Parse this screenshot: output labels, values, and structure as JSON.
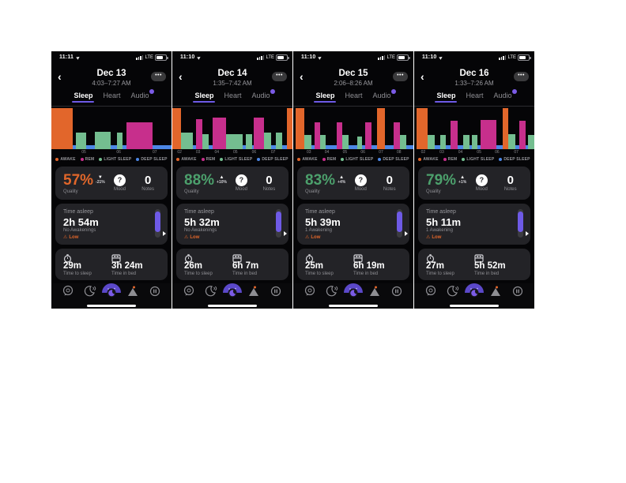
{
  "tabs": {
    "sleep": "Sleep",
    "heart": "Heart",
    "audio": "Audio"
  },
  "labels": {
    "network": "LTE",
    "quality": "Quality",
    "mood": "Mood",
    "notes": "Notes",
    "mood_value": "?",
    "time_asleep": "Time asleep",
    "time_to_sleep": "Time to sleep",
    "time_in_bed": "Time in bed",
    "menu_dots": "•••",
    "back": "‹",
    "warning": "⚠"
  },
  "legend": [
    {
      "label": "AWAKE",
      "color": "#e2662b"
    },
    {
      "label": "REM",
      "color": "#c72f8c"
    },
    {
      "label": "LIGHT SLEEP",
      "color": "#74be90"
    },
    {
      "label": "DEEP SLEEP",
      "color": "#4c87e6"
    }
  ],
  "nav_icons": [
    "chat-icon",
    "sleep-sounds-icon",
    "pillow-logo-icon",
    "trends-icon",
    "profile-icon"
  ],
  "phones": [
    {
      "status_time": "11:11",
      "date": "Dec 13",
      "time_range": "4:03–7:27 AM",
      "quality": {
        "value": "57%",
        "arrow": "▼",
        "delta": "-21%",
        "color": "#e0662a"
      },
      "mood": "?",
      "notes": "0",
      "time_asleep": {
        "duration": "2h 54m",
        "awakenings": "No Awakenings",
        "level": "Low"
      },
      "time_to_sleep": "29m",
      "time_in_bed": "3h 24m",
      "chart": {
        "ticks": [
          {
            "label": "05",
            "x": 0.27
          },
          {
            "label": "06",
            "x": 0.56
          },
          {
            "label": "07",
            "x": 0.86
          }
        ],
        "bars": [
          {
            "t": "awake",
            "x": 0.0,
            "w": 0.175,
            "h": 1.0
          },
          {
            "t": "light",
            "x": 0.205,
            "w": 0.085,
            "h": 0.4
          },
          {
            "t": "light",
            "x": 0.365,
            "w": 0.13,
            "h": 0.42
          },
          {
            "t": "light",
            "x": 0.545,
            "w": 0.05,
            "h": 0.4
          },
          {
            "t": "rem",
            "x": 0.625,
            "w": 0.215,
            "h": 0.65
          },
          {
            "t": "deep",
            "x": 0.175,
            "w": 0.825,
            "h": 0.09
          }
        ]
      }
    },
    {
      "status_time": "11:10",
      "date": "Dec 14",
      "time_range": "1:35–7:42 AM",
      "quality": {
        "value": "88%",
        "arrow": "▲",
        "delta": "+10%",
        "color": "#4ca06c"
      },
      "mood": "?",
      "notes": "0",
      "time_asleep": {
        "duration": "5h 32m",
        "awakenings": "No Awakenings",
        "level": "Low"
      },
      "time_to_sleep": "26m",
      "time_in_bed": "6h 7m",
      "chart": {
        "ticks": [
          {
            "label": "02",
            "x": 0.06
          },
          {
            "label": "03",
            "x": 0.215
          },
          {
            "label": "04",
            "x": 0.37
          },
          {
            "label": "05",
            "x": 0.525
          },
          {
            "label": "06",
            "x": 0.68
          },
          {
            "label": "07",
            "x": 0.84
          }
        ],
        "bars": [
          {
            "t": "awake",
            "x": 0.0,
            "w": 0.075,
            "h": 1.0
          },
          {
            "t": "light",
            "x": 0.075,
            "w": 0.095,
            "h": 0.4
          },
          {
            "t": "rem",
            "x": 0.195,
            "w": 0.055,
            "h": 0.74
          },
          {
            "t": "light",
            "x": 0.25,
            "w": 0.05,
            "h": 0.36
          },
          {
            "t": "rem",
            "x": 0.335,
            "w": 0.115,
            "h": 0.76
          },
          {
            "t": "light",
            "x": 0.45,
            "w": 0.135,
            "h": 0.36
          },
          {
            "t": "light",
            "x": 0.615,
            "w": 0.05,
            "h": 0.36
          },
          {
            "t": "rem",
            "x": 0.675,
            "w": 0.09,
            "h": 0.76
          },
          {
            "t": "light",
            "x": 0.765,
            "w": 0.06,
            "h": 0.4
          },
          {
            "t": "light",
            "x": 0.865,
            "w": 0.05,
            "h": 0.4
          },
          {
            "t": "awake",
            "x": 0.955,
            "w": 0.045,
            "h": 1.0
          },
          {
            "t": "deep",
            "x": 0.075,
            "w": 0.88,
            "h": 0.09
          }
        ]
      }
    },
    {
      "status_time": "11:10",
      "date": "Dec 15",
      "time_range": "2:06–8:26 AM",
      "quality": {
        "value": "83%",
        "arrow": "▲",
        "delta": "+4%",
        "color": "#4ca06c"
      },
      "mood": "?",
      "notes": "0",
      "time_asleep": {
        "duration": "5h 39m",
        "awakenings": "1 Awakening",
        "level": "Low"
      },
      "time_to_sleep": "25m",
      "time_in_bed": "6h 19m",
      "chart": {
        "ticks": [
          {
            "label": "03",
            "x": 0.13
          },
          {
            "label": "04",
            "x": 0.28
          },
          {
            "label": "05",
            "x": 0.43
          },
          {
            "label": "06",
            "x": 0.58
          },
          {
            "label": "07",
            "x": 0.73
          },
          {
            "label": "08",
            "x": 0.88
          }
        ],
        "bars": [
          {
            "t": "awake",
            "x": 0.02,
            "w": 0.07,
            "h": 1.0
          },
          {
            "t": "light",
            "x": 0.09,
            "w": 0.06,
            "h": 0.34
          },
          {
            "t": "rem",
            "x": 0.175,
            "w": 0.05,
            "h": 0.66
          },
          {
            "t": "light",
            "x": 0.225,
            "w": 0.045,
            "h": 0.34
          },
          {
            "t": "rem",
            "x": 0.36,
            "w": 0.05,
            "h": 0.66
          },
          {
            "t": "light",
            "x": 0.41,
            "w": 0.05,
            "h": 0.34
          },
          {
            "t": "light",
            "x": 0.53,
            "w": 0.045,
            "h": 0.3
          },
          {
            "t": "rem",
            "x": 0.6,
            "w": 0.05,
            "h": 0.66
          },
          {
            "t": "awake",
            "x": 0.7,
            "w": 0.06,
            "h": 1.0
          },
          {
            "t": "rem",
            "x": 0.835,
            "w": 0.055,
            "h": 0.66
          },
          {
            "t": "light",
            "x": 0.89,
            "w": 0.05,
            "h": 0.34
          },
          {
            "t": "deep",
            "x": 0.09,
            "w": 0.91,
            "h": 0.09
          }
        ]
      }
    },
    {
      "status_time": "11:10",
      "date": "Dec 16",
      "time_range": "1:33–7:26 AM",
      "quality": {
        "value": "79%",
        "arrow": "▲",
        "delta": "+1%",
        "color": "#4ca06c"
      },
      "mood": "?",
      "notes": "0",
      "time_asleep": {
        "duration": "5h 11m",
        "awakenings": "1 Awakening",
        "level": "Low"
      },
      "time_to_sleep": "27m",
      "time_in_bed": "5h 52m",
      "chart": {
        "ticks": [
          {
            "label": "02",
            "x": 0.075
          },
          {
            "label": "03",
            "x": 0.23
          },
          {
            "label": "04",
            "x": 0.385
          },
          {
            "label": "05",
            "x": 0.54
          },
          {
            "label": "06",
            "x": 0.69
          },
          {
            "label": "07",
            "x": 0.85
          }
        ],
        "bars": [
          {
            "t": "awake",
            "x": 0.02,
            "w": 0.09,
            "h": 1.0
          },
          {
            "t": "light",
            "x": 0.11,
            "w": 0.06,
            "h": 0.34
          },
          {
            "t": "light",
            "x": 0.215,
            "w": 0.05,
            "h": 0.34
          },
          {
            "t": "rem",
            "x": 0.3,
            "w": 0.06,
            "h": 0.7
          },
          {
            "t": "light",
            "x": 0.41,
            "w": 0.05,
            "h": 0.34
          },
          {
            "t": "light",
            "x": 0.48,
            "w": 0.045,
            "h": 0.34
          },
          {
            "t": "rem",
            "x": 0.55,
            "w": 0.135,
            "h": 0.72
          },
          {
            "t": "awake",
            "x": 0.735,
            "w": 0.05,
            "h": 1.0
          },
          {
            "t": "light",
            "x": 0.785,
            "w": 0.055,
            "h": 0.36
          },
          {
            "t": "rem",
            "x": 0.875,
            "w": 0.055,
            "h": 0.7
          },
          {
            "t": "light",
            "x": 0.945,
            "w": 0.055,
            "h": 0.34
          },
          {
            "t": "deep",
            "x": 0.09,
            "w": 0.91,
            "h": 0.09
          }
        ]
      }
    }
  ]
}
